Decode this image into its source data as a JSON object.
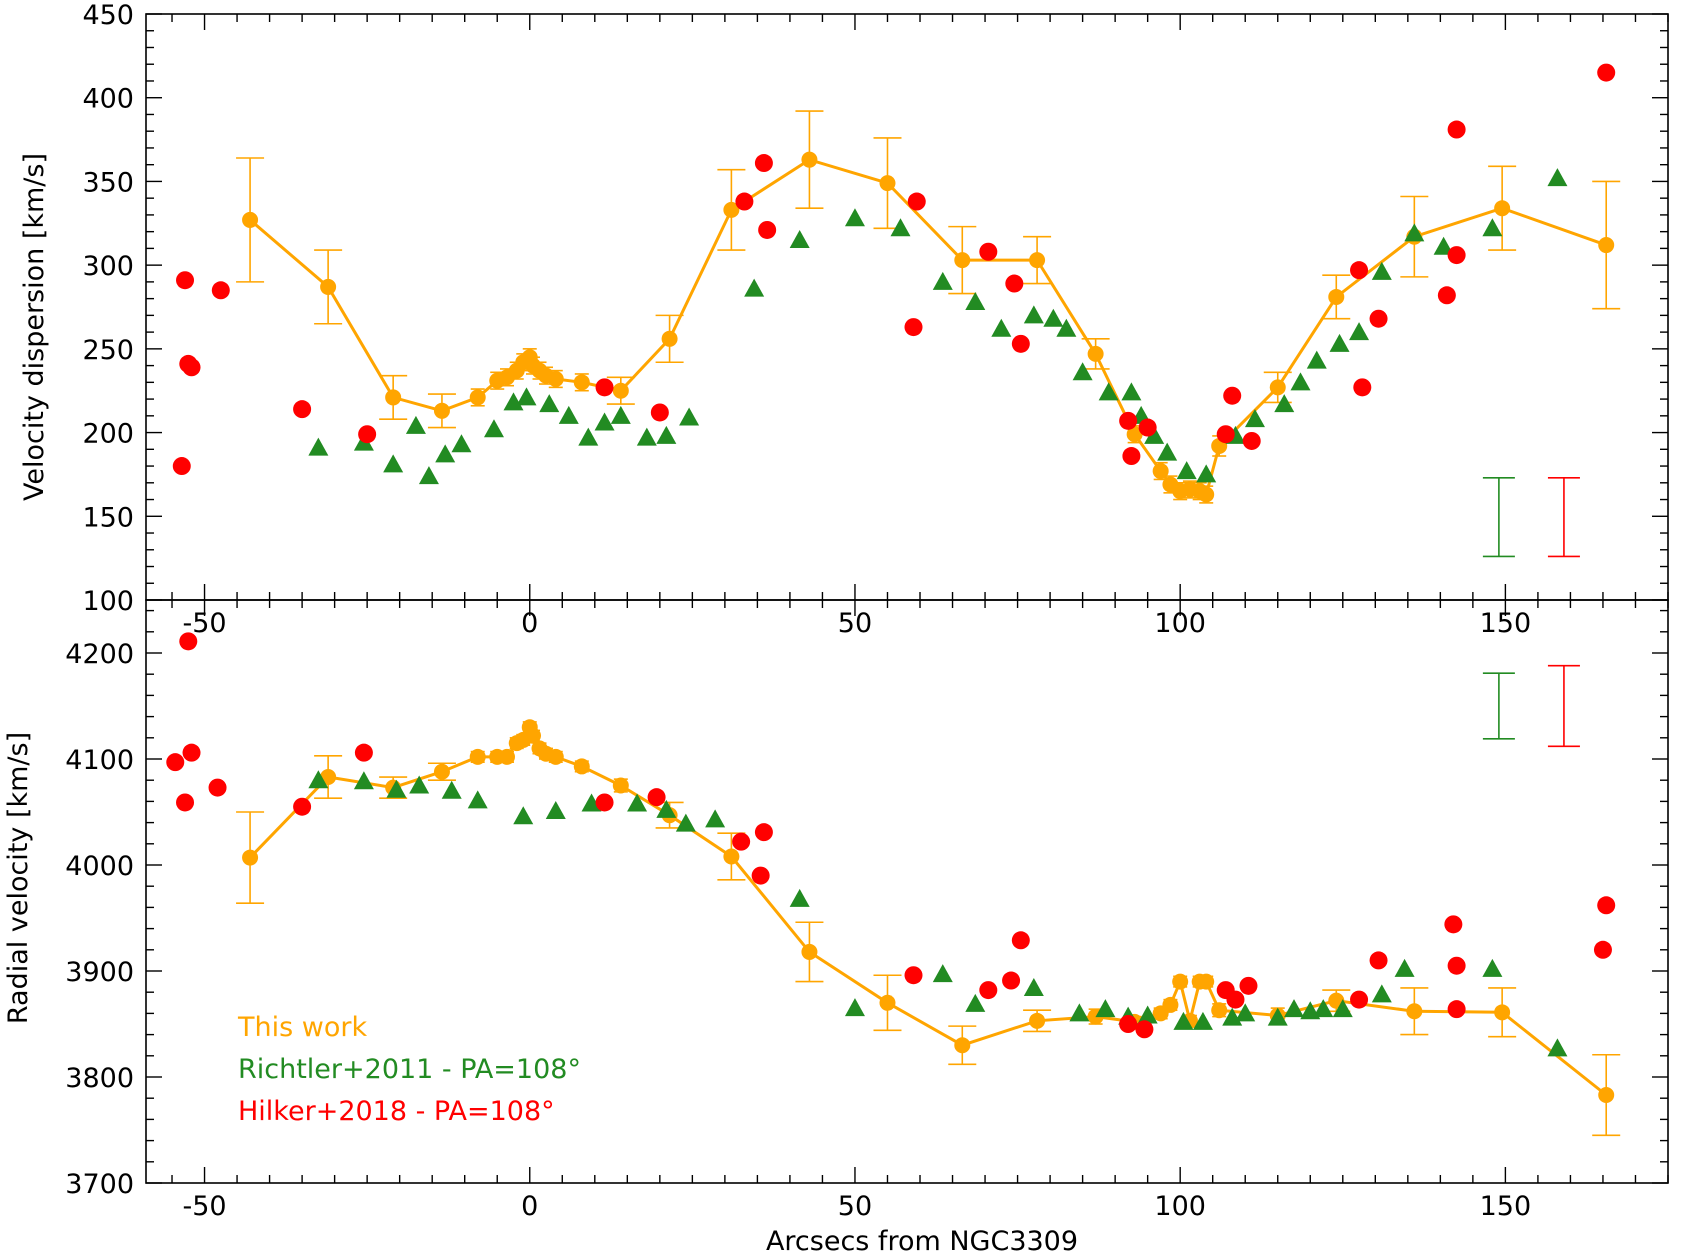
{
  "chart_data": [
    {
      "type": "scatter",
      "panel": "top",
      "xlabel": "",
      "ylabel": "Velocity dispersion [km/s]",
      "xlim": [
        -59,
        175
      ],
      "ylim": [
        100,
        450
      ],
      "xticks": [
        -50,
        0,
        50,
        100,
        150
      ],
      "xtick_labels": [
        "-50",
        "0",
        "50",
        "100",
        "150"
      ],
      "yticks": [
        100,
        150,
        200,
        250,
        300,
        350,
        400,
        450
      ],
      "ytick_labels": [
        "100",
        "150",
        "200",
        "250",
        "300",
        "350",
        "400",
        "450"
      ],
      "series": [
        {
          "name": "This work",
          "color": "#FFA500",
          "marker": "circle-line",
          "x": [
            -43,
            -31,
            -21,
            -13.5,
            -8,
            -5,
            -3.5,
            -2,
            -1,
            0,
            0.5,
            1.5,
            2.5,
            4,
            8,
            14,
            21.5,
            31,
            43,
            55,
            66.5,
            78,
            87,
            93,
            97,
            98.5,
            100,
            101.5,
            103,
            104,
            106,
            115,
            124,
            136,
            149.5,
            165.5
          ],
          "y": [
            327,
            287,
            221,
            213,
            221,
            231,
            233,
            237,
            242,
            245,
            240,
            237,
            234,
            232,
            230,
            225,
            256,
            333,
            363,
            349,
            303,
            303,
            247,
            199,
            177,
            169,
            165,
            166,
            165,
            163,
            192,
            227,
            281,
            317,
            334,
            312
          ],
          "err": [
            37,
            22,
            13,
            10,
            5,
            5,
            5,
            5,
            5,
            5,
            5,
            5,
            5,
            5,
            5,
            8,
            14,
            24,
            29,
            27,
            20,
            14,
            9,
            5,
            5,
            5,
            5,
            5,
            5,
            5,
            6,
            9,
            13,
            24,
            25,
            38
          ]
        },
        {
          "name": "Richtler+2011 - PA=108°",
          "color": "#228B22",
          "marker": "triangle",
          "x": [
            -32.5,
            -25.5,
            -21,
            -17.5,
            -15.5,
            -13,
            -10.5,
            -5.5,
            -2.5,
            -0.5,
            3,
            6,
            9,
            11.5,
            14,
            18,
            21,
            24.5,
            34.5,
            41.5,
            50,
            57,
            63.5,
            68.5,
            72.5,
            77.5,
            80.5,
            82.5,
            85,
            89,
            92.5,
            101,
            104,
            121,
            124.5,
            127.5,
            131,
            136,
            140.5,
            148,
            158,
            94,
            96,
            98,
            116,
            118.5,
            111.5,
            108.5
          ],
          "y": [
            191,
            194,
            181,
            204,
            174,
            187,
            193,
            202,
            218,
            221,
            217,
            210,
            197,
            206,
            210,
            197,
            198,
            209,
            286,
            315,
            328,
            322,
            290,
            278,
            262,
            270,
            268,
            262,
            236,
            224,
            224,
            177,
            175,
            243,
            253,
            260,
            296,
            319,
            311,
            322,
            352,
            210,
            198,
            188,
            217,
            230,
            208,
            198
          ]
        },
        {
          "name": "Hilker+2018 - PA=108°",
          "color": "#FF0000",
          "marker": "circle",
          "x": [
            -53.5,
            -53,
            -52.5,
            -52,
            -47.5,
            -35,
            -25,
            11.5,
            20,
            33,
            36,
            36.5,
            59.5,
            59,
            70.5,
            74.5,
            75.5,
            92,
            92.5,
            95,
            107,
            108,
            111,
            127.5,
            128,
            130.5,
            141,
            142.5,
            142.5,
            165.5
          ],
          "y": [
            180,
            291,
            241,
            239,
            285,
            214,
            199,
            227,
            212,
            338,
            361,
            321,
            338,
            263,
            308,
            289,
            253,
            207,
            186,
            203,
            199,
            222,
            195,
            297,
            227,
            268,
            282,
            306,
            381,
            415
          ]
        }
      ],
      "legend_entries": [],
      "error_bar_samples": [
        {
          "color": "#228B22",
          "x": 149,
          "center": 149.5,
          "half_range": 23.5
        },
        {
          "color": "#FF0000",
          "x": 159,
          "center": 149.5,
          "half_range": 23.5
        }
      ]
    },
    {
      "type": "scatter",
      "panel": "bottom",
      "xlabel": "Arcsecs from NGC3309",
      "ylabel": "Radial velocity [km/s]",
      "xlim": [
        -59,
        175
      ],
      "ylim": [
        3700,
        4250
      ],
      "xticks": [
        -50,
        0,
        50,
        100,
        150
      ],
      "xtick_labels": [
        "-50",
        "0",
        "50",
        "100",
        "150"
      ],
      "yticks": [
        3700,
        3800,
        3900,
        4000,
        4100,
        4200
      ],
      "ytick_labels": [
        "3700",
        "3800",
        "3900",
        "4000",
        "4100",
        "4200"
      ],
      "series": [
        {
          "name": "This work",
          "color": "#FFA500",
          "marker": "circle-line",
          "x": [
            -43,
            -31,
            -21,
            -13.5,
            -8,
            -5,
            -3.5,
            -2,
            -1,
            0,
            0.5,
            1.5,
            2.5,
            4,
            8,
            14,
            21.5,
            31,
            43,
            55,
            66.5,
            78,
            87,
            93,
            97,
            98.5,
            100,
            101.5,
            103,
            104,
            106,
            115,
            124,
            136,
            149.5,
            165.5
          ],
          "y": [
            4007,
            4083,
            4073,
            4088,
            4102,
            4102,
            4102,
            4115,
            4118,
            4130,
            4122,
            4110,
            4105,
            4102,
            4093,
            4075,
            4047,
            4008,
            3918,
            3870,
            3830,
            3853,
            3857,
            3852,
            3860,
            3868,
            3890,
            3853,
            3890,
            3890,
            3863,
            3858,
            3872,
            3862,
            3861,
            3783
          ],
          "err": [
            43,
            20,
            10,
            8,
            5,
            5,
            5,
            5,
            5,
            5,
            5,
            5,
            5,
            5,
            5,
            6,
            12,
            22,
            28,
            26,
            18,
            10,
            7,
            5,
            5,
            5,
            5,
            5,
            5,
            5,
            6,
            7,
            10,
            22,
            23,
            38
          ]
        },
        {
          "name": "Richtler+2011 - PA=108°",
          "color": "#228B22",
          "marker": "triangle",
          "x": [
            -32.5,
            -25.5,
            -20.5,
            -17,
            -12,
            -8,
            -1,
            4,
            9.5,
            16.5,
            21,
            24,
            28.5,
            41.5,
            50,
            63.5,
            68.5,
            77.5,
            84.5,
            88.5,
            92,
            95,
            100.5,
            103.5,
            108,
            115,
            117.5,
            122,
            125,
            131,
            134.5,
            148,
            158,
            110,
            120
          ],
          "y": [
            4080,
            4079,
            4071,
            4075,
            4070,
            4061,
            4046,
            4051,
            4058,
            4058,
            4052,
            4039,
            4043,
            3968,
            3865,
            3897,
            3869,
            3884,
            3860,
            3864,
            3857,
            3858,
            3852,
            3852,
            3856,
            3856,
            3864,
            3864,
            3864,
            3878,
            3902,
            3902,
            3827,
            3860,
            3862
          ]
        },
        {
          "name": "Hilker+2018 - PA=108°",
          "color": "#FF0000",
          "marker": "circle",
          "x": [
            -54.5,
            -53,
            -52.5,
            -52,
            -48,
            -35,
            -25.5,
            11.5,
            19.5,
            32.5,
            35.5,
            36,
            59,
            70.5,
            74,
            75.5,
            92,
            94.5,
            107,
            108.5,
            110.5,
            127.5,
            130.5,
            142,
            142.5,
            142.5,
            165,
            165.5
          ],
          "y": [
            4097,
            4059,
            4211,
            4106,
            4073,
            4055,
            4106,
            4059,
            4064,
            4022,
            3990,
            4031,
            3896,
            3882,
            3891,
            3929,
            3850,
            3845,
            3882,
            3873,
            3886,
            3873,
            3910,
            3944,
            3864,
            3905,
            3920,
            3962
          ]
        }
      ],
      "legend_entries": [
        "This work",
        "Richtler+2011 - PA=108°",
        "Hilker+2018 - PA=108°"
      ],
      "error_bar_samples": [
        {
          "color": "#228B22",
          "x": 149,
          "center": 4150,
          "half_range": 31
        },
        {
          "color": "#FF0000",
          "x": 159,
          "center": 4150,
          "half_range": 38
        }
      ]
    }
  ]
}
